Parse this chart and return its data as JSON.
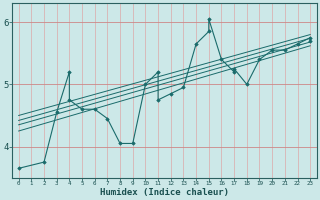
{
  "xlabel": "Humidex (Indice chaleur)",
  "bg_color": "#cce8e8",
  "line_color": "#1a6b6b",
  "marker": "D",
  "marker_size": 1.8,
  "line_width": 0.8,
  "xlim": [
    -0.5,
    23.5
  ],
  "ylim": [
    3.5,
    6.3
  ],
  "yticks": [
    4,
    5,
    6
  ],
  "xticks": [
    0,
    1,
    2,
    3,
    4,
    5,
    6,
    7,
    8,
    9,
    10,
    11,
    12,
    13,
    14,
    15,
    16,
    17,
    18,
    19,
    20,
    21,
    22,
    23
  ],
  "series": [
    [
      0,
      3.65
    ],
    [
      2,
      3.75
    ],
    [
      3,
      4.55
    ],
    [
      4,
      5.2
    ],
    [
      4,
      4.75
    ],
    [
      5,
      4.6
    ],
    [
      6,
      4.6
    ],
    [
      7,
      4.45
    ],
    [
      8,
      4.05
    ],
    [
      9,
      4.05
    ],
    [
      10,
      5.0
    ],
    [
      11,
      5.2
    ],
    [
      11,
      4.75
    ],
    [
      12,
      4.85
    ],
    [
      13,
      4.95
    ],
    [
      14,
      5.65
    ],
    [
      15,
      5.85
    ],
    [
      15,
      6.05
    ],
    [
      16,
      5.4
    ],
    [
      17,
      5.2
    ],
    [
      17,
      5.25
    ],
    [
      18,
      5.0
    ],
    [
      19,
      5.4
    ],
    [
      20,
      5.55
    ],
    [
      21,
      5.55
    ],
    [
      22,
      5.65
    ],
    [
      23,
      5.75
    ],
    [
      23,
      5.7
    ]
  ],
  "trend_lines": [
    {
      "x0": 0,
      "y0": 4.25,
      "x1": 23,
      "y1": 5.62
    },
    {
      "x0": 0,
      "y0": 4.35,
      "x1": 23,
      "y1": 5.68
    },
    {
      "x0": 0,
      "y0": 4.42,
      "x1": 23,
      "y1": 5.74
    },
    {
      "x0": 0,
      "y0": 4.5,
      "x1": 23,
      "y1": 5.8
    }
  ],
  "vgrid_color": "#dda8a8",
  "hgrid_color": "#cc8888"
}
